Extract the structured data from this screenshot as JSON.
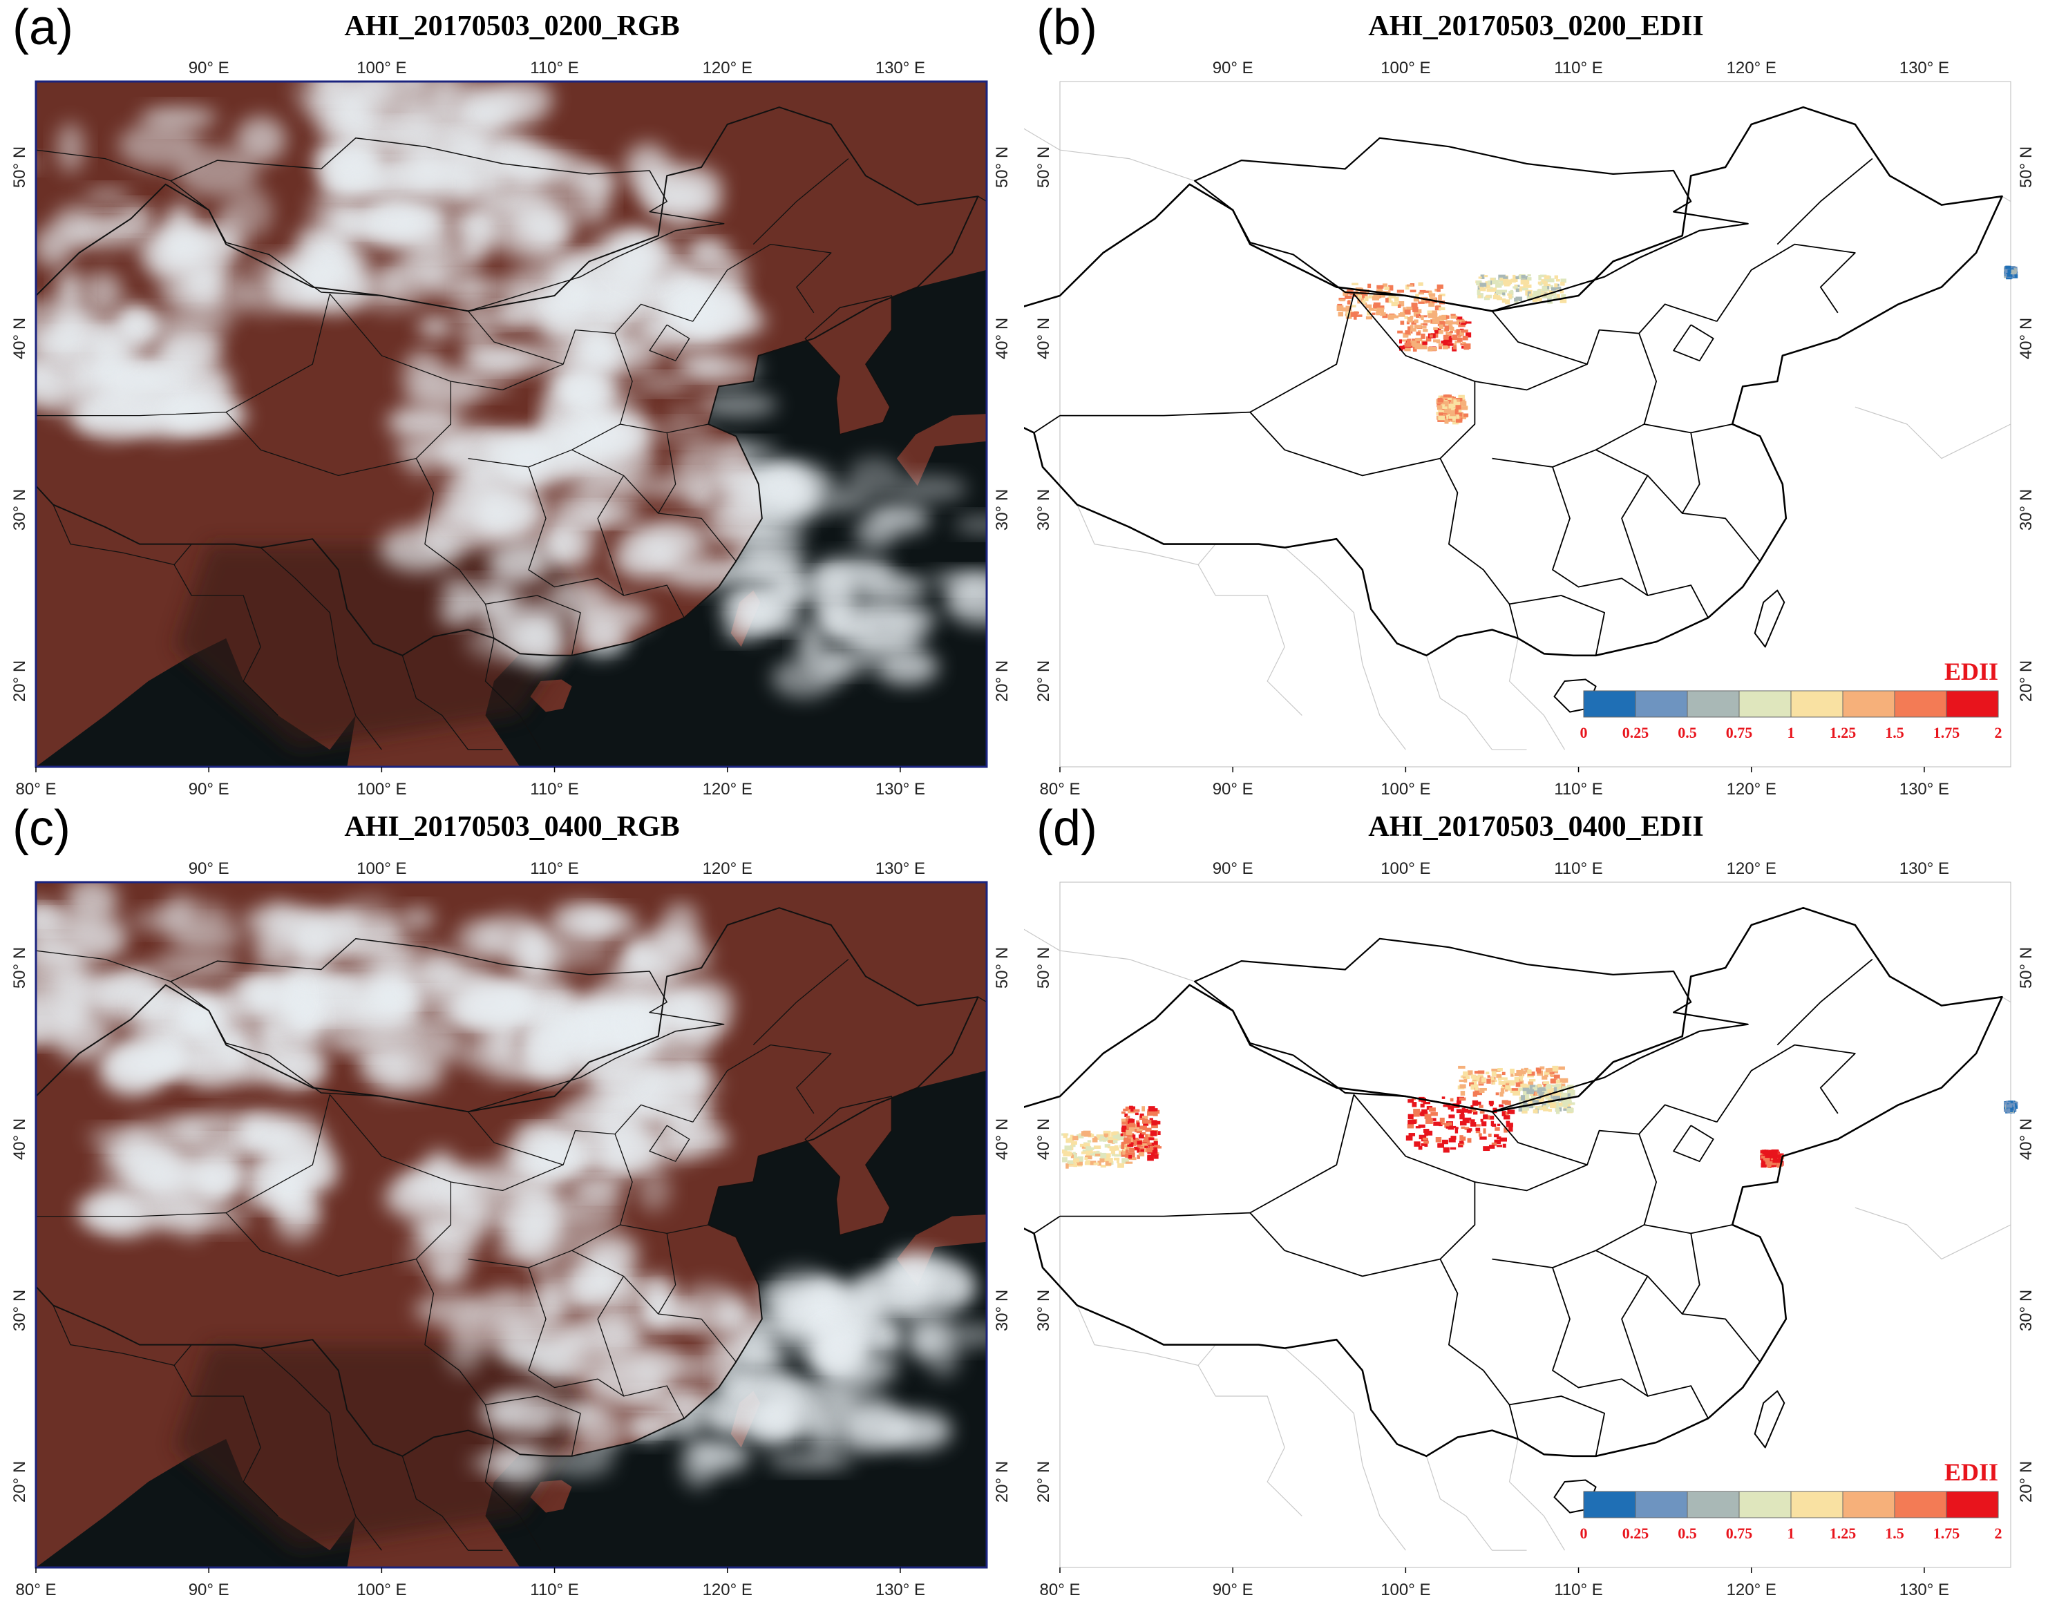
{
  "panels": [
    {
      "id": "a",
      "label": "(a)",
      "title": "AHI_20170503_0200_RGB",
      "kind": "rgb"
    },
    {
      "id": "b",
      "label": "(b)",
      "title": "AHI_20170503_0200_EDII",
      "kind": "edii"
    },
    {
      "id": "c",
      "label": "(c)",
      "title": "AHI_20170503_0400_RGB",
      "kind": "rgb"
    },
    {
      "id": "d",
      "label": "(d)",
      "title": "AHI_20170503_0400_EDII",
      "kind": "edii"
    }
  ],
  "axes": {
    "lon_ticks": [
      "80° E",
      "90° E",
      "100° E",
      "110° E",
      "120° E",
      "130° E"
    ],
    "lon_values": [
      80,
      90,
      100,
      110,
      120,
      130
    ],
    "top_lon_ticks": [
      "90° E",
      "100° E",
      "110° E",
      "120° E",
      "130° E"
    ],
    "lat_ticks": [
      "20° N",
      "30° N",
      "40° N",
      "50° N"
    ],
    "lat_values": [
      20,
      30,
      40,
      50
    ],
    "lon_range": [
      80,
      135
    ],
    "lat_range": [
      15,
      55
    ]
  },
  "colorbar": {
    "title": "EDII",
    "labels": [
      "0",
      "0.25",
      "0.5",
      "0.75",
      "1",
      "1.25",
      "1.5",
      "1.75",
      "2"
    ],
    "colors": [
      "#1f6fb5",
      "#6e94c0",
      "#a9b8b6",
      "#dfe6bd",
      "#f9e1a2",
      "#f6b07a",
      "#f37b55",
      "#e8141c"
    ]
  },
  "colors": {
    "border_line": "#000000",
    "rgb_frame": "#1a237e",
    "ocean_rgb": "#0d1416",
    "land_rgb": "#6b3026",
    "cloud": "#e8eef2"
  }
}
